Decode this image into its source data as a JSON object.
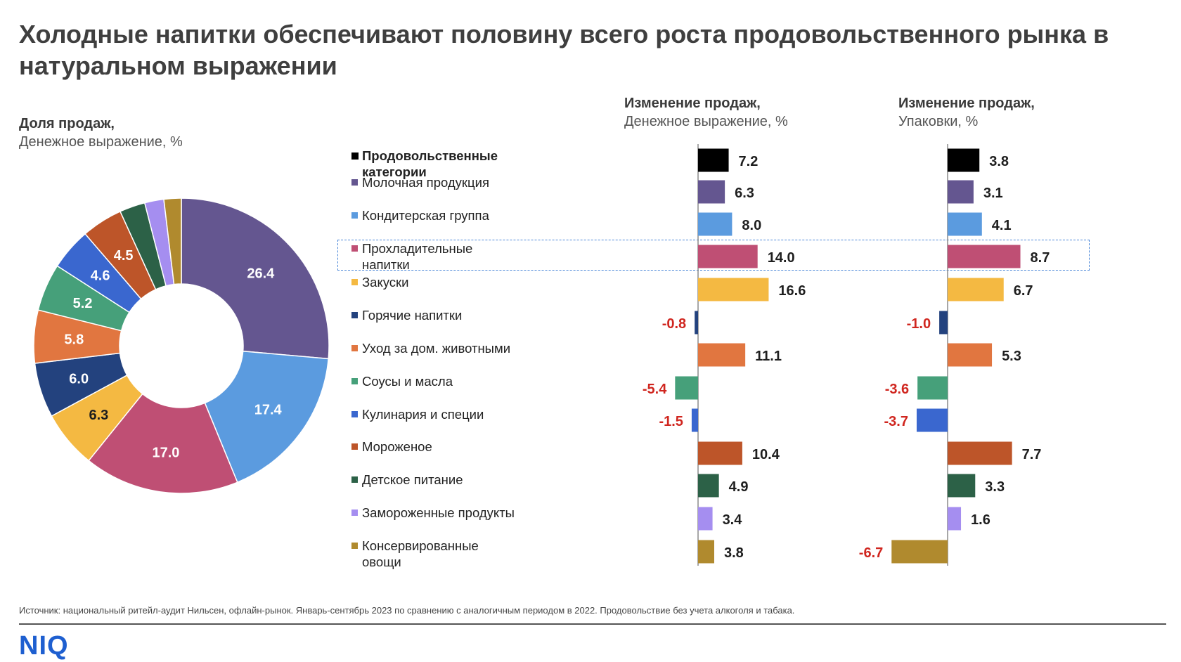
{
  "title": "Холодные напитки обеспечивают половину всего роста продовольственного рынка в натуральном выражении",
  "share_header": {
    "bold": "Доля продаж,",
    "normal": "Денежное выражение, %"
  },
  "value_header": {
    "bold": "Изменение продаж,",
    "normal": "Денежное выражение, %"
  },
  "units_header": {
    "bold": "Изменение продаж,",
    "normal": "Упаковки, %"
  },
  "footnote": "Источник: национальный ритейл-аудит Нильсен, офлайн-рынок. Январь-сентябрь 2023 по сравнению с аналогичным периодом в 2022. Продовольствие без учета алкоголя и табака.",
  "logo": "NIQ",
  "chart_data": [
    {
      "type": "pie",
      "title": "Доля продаж, Денежное выражение, %",
      "categories": [
        "Молочная продукция",
        "Кондитерская группа",
        "Прохладительные напитки",
        "Закуски",
        "Горячие напитки",
        "Уход за дом. животными",
        "Соусы и масла",
        "Кулинария и специи",
        "Мороженое",
        "Детское питание",
        "Замороженные продукты",
        "Консервированные овощи"
      ],
      "values": [
        26.4,
        17.4,
        17.0,
        6.3,
        6.0,
        5.8,
        5.2,
        4.6,
        4.5,
        2.8,
        2.1,
        1.9
      ],
      "labels": [
        "26.4",
        "17.4",
        "17.0",
        "6.3",
        "6.0",
        "5.8",
        "5.2",
        "4.6",
        "4.5",
        "",
        "",
        ""
      ],
      "colors": [
        "#645690",
        "#5b9bdf",
        "#bf4f74",
        "#f4b942",
        "#23427e",
        "#e17640",
        "#46a07a",
        "#3a67cf",
        "#bd5529",
        "#2c6147",
        "#a58ef0",
        "#b08a2e"
      ]
    },
    {
      "type": "bar",
      "title": "Изменение продаж, Денежное выражение, %",
      "categories": [
        "Продовольственные категории",
        "Молочная продукция",
        "Кондитерская группа",
        "Прохладительные напитки",
        "Закуски",
        "Горячие напитки",
        "Уход за дом. животными",
        "Соусы и масла",
        "Кулинария и специи",
        "Мороженое",
        "Детское питание",
        "Замороженные продукты",
        "Консервированные овощи"
      ],
      "values": [
        7.2,
        6.3,
        8.0,
        14.0,
        16.6,
        -0.8,
        11.1,
        -5.4,
        -1.5,
        10.4,
        4.9,
        3.4,
        3.8
      ],
      "labels": [
        "7.2",
        "6.3",
        "8.0",
        "14.0",
        "16.6",
        "-0.8",
        "11.1",
        "-5.4",
        "-1.5",
        "10.4",
        "4.9",
        "3.4",
        "3.8"
      ]
    },
    {
      "type": "bar",
      "title": "Изменение продаж, Упаковки, %",
      "categories": [
        "Продовольственные категории",
        "Молочная продукция",
        "Кондитерская группа",
        "Прохладительные напитки",
        "Закуски",
        "Горячие напитки",
        "Уход за дом. животными",
        "Соусы и масла",
        "Кулинария и специи",
        "Мороженое",
        "Детское питание",
        "Замороженные продукты",
        "Консервированные овощи"
      ],
      "values": [
        3.8,
        3.1,
        4.1,
        8.7,
        6.7,
        -1.0,
        5.3,
        -3.6,
        -3.7,
        7.7,
        3.3,
        1.6,
        -6.7
      ],
      "labels": [
        "3.8",
        "3.1",
        "4.1",
        "8.7",
        "6.7",
        "-1.0",
        "5.3",
        "-3.6",
        "-3.7",
        "7.7",
        "3.3",
        "1.6",
        "-6.7"
      ]
    }
  ],
  "legend": [
    {
      "label": "Продовольственные категории",
      "color": "#000000"
    },
    {
      "label": "Молочная продукция",
      "color": "#645690"
    },
    {
      "label": "Кондитерская группа",
      "color": "#5b9bdf"
    },
    {
      "label": "Прохладительные\nнапитки",
      "color": "#bf4f74"
    },
    {
      "label": "Закуски",
      "color": "#f4b942"
    },
    {
      "label": "Горячие напитки",
      "color": "#23427e"
    },
    {
      "label": "Уход за дом. животными",
      "color": "#e17640"
    },
    {
      "label": "Соусы и масла",
      "color": "#46a07a"
    },
    {
      "label": "Кулинария и специи",
      "color": "#3a67cf"
    },
    {
      "label": "Мороженое",
      "color": "#bd5529"
    },
    {
      "label": "Детское питание",
      "color": "#2c6147"
    },
    {
      "label": "Замороженные продукты",
      "color": "#a58ef0"
    },
    {
      "label": "Консервированные\nовощи",
      "color": "#b08a2e"
    }
  ],
  "colors": {
    "negative_label": "#d0261f",
    "positive_label": "#1e1e1e",
    "highlight": "#4a86d8"
  }
}
